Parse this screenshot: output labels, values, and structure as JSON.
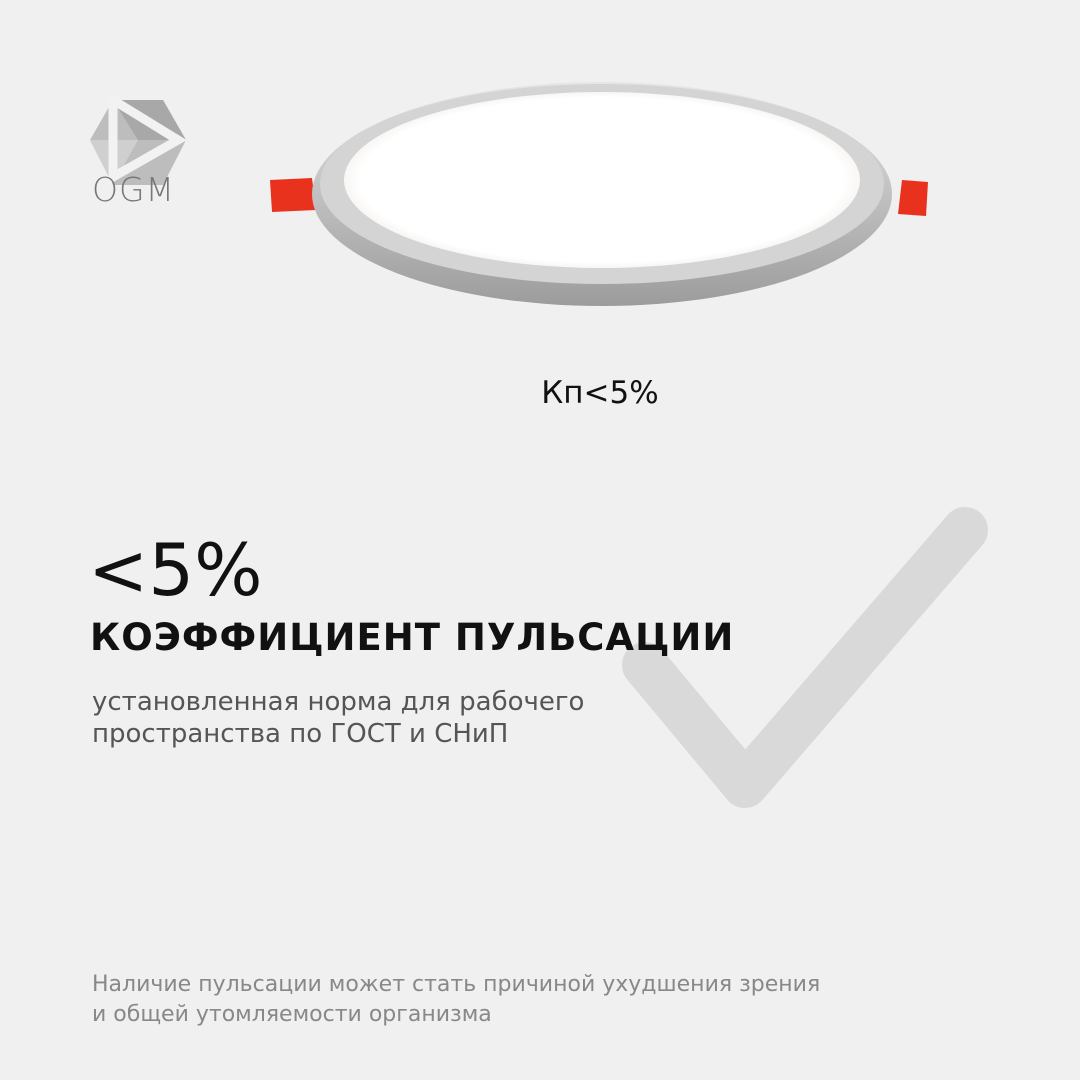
{
  "brand": {
    "logo_text": "OGM",
    "logo_icon": "hexagon-play-icon"
  },
  "product": {
    "image": "round-led-panel",
    "label": "Кп<5%"
  },
  "main": {
    "value": "<5%",
    "heading": "КОЭФФИЦИЕНТ ПУЛЬСАЦИИ",
    "subtitle_lines": [
      "установленная норма для рабочего",
      "пространства по ГОСТ и СНиП"
    ]
  },
  "footer": {
    "lines": [
      "Наличие пульсации может стать причиной ухудшения зрения",
      "и общей утомляемости организма"
    ]
  },
  "decor": {
    "icon": "checkmark-icon",
    "check_color": "#d9d9d9",
    "accent": "#e8321e",
    "background": "#f0f0f0"
  }
}
